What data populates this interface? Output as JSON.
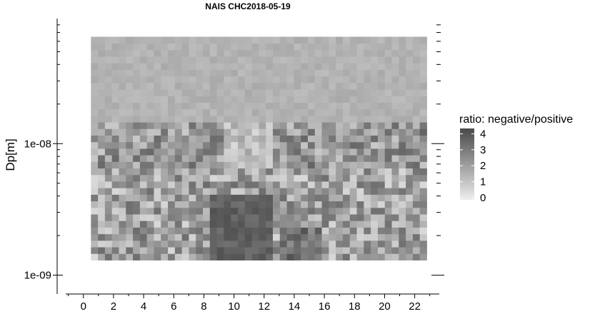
{
  "chart_data": {
    "type": "heatmap",
    "title": "NAIS CHC2018-05-19",
    "xlabel": "",
    "ylabel": "Dp[m]",
    "x_ticks": [
      "0",
      "2",
      "4",
      "6",
      "8",
      "10",
      "12",
      "14",
      "16",
      "18",
      "20",
      "22"
    ],
    "x_range": [
      -0.7,
      24.2
    ],
    "y_scale": "log",
    "y_ticks": [
      "1e-09",
      "1e-08"
    ],
    "y_tick_values": [
      1e-09,
      1e-08
    ],
    "y_range": [
      9e-10,
      8.5e-08
    ],
    "data_extent": {
      "hour_start": 0.5,
      "hour_end": 22.8,
      "dp_min": 1.3e-09,
      "dp_max": 6.5e-08
    },
    "n_time_bins": 48,
    "n_size_bins": 34,
    "colorscale": {
      "low_color": "#ededed",
      "high_color": "#4a4a4a",
      "min": 0,
      "max": 4.2
    },
    "legend": {
      "title": "ratio: negative/positive",
      "labels": [
        "4",
        "3",
        "2",
        "1",
        "0"
      ],
      "values": [
        4,
        3,
        2,
        1,
        0
      ],
      "position": "right"
    },
    "grid": false
  }
}
